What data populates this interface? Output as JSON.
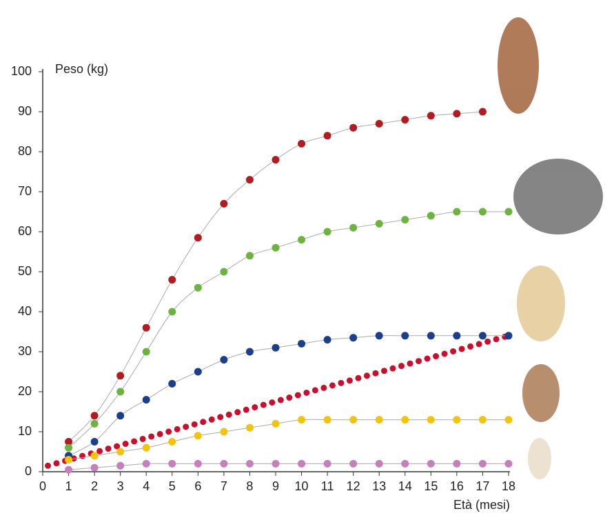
{
  "chart_data": {
    "type": "line",
    "y_label": "Peso (kg)",
    "x_label": "Età (mesi)",
    "x": [
      1,
      2,
      3,
      4,
      5,
      6,
      7,
      8,
      9,
      10,
      11,
      12,
      13,
      14,
      15,
      16,
      17,
      18
    ],
    "series": [
      {
        "color": "#b01c22",
        "values": [
          7.5,
          14,
          24,
          36,
          48,
          58.5,
          67,
          73,
          78,
          82,
          84,
          86,
          87,
          88,
          89,
          89.5,
          90,
          null
        ]
      },
      {
        "color": "#6cb33f",
        "values": [
          6,
          12,
          20,
          30,
          40,
          46,
          50,
          54,
          56,
          58,
          60,
          61,
          62,
          63,
          64,
          65,
          65,
          65
        ]
      },
      {
        "color": "#1c3f8c",
        "values": [
          4,
          7.5,
          14,
          18,
          22,
          25,
          28,
          30,
          31,
          32,
          33,
          33.5,
          34,
          34,
          34,
          34,
          34,
          34
        ]
      },
      {
        "color": "#f2c40f",
        "values": [
          3,
          4,
          5,
          6,
          7.5,
          9,
          10,
          11,
          12,
          13,
          13,
          13,
          13,
          13,
          13,
          13,
          13,
          13
        ]
      },
      {
        "color": "#c67fbd",
        "values": [
          0.5,
          1,
          1.5,
          2,
          2,
          2,
          2,
          2,
          2,
          2,
          2,
          2,
          2,
          2,
          2,
          2,
          2,
          2
        ]
      }
    ],
    "reference": {
      "color": "#c8102e",
      "x": [
        0.2,
        18
      ],
      "values": [
        1.5,
        34
      ]
    },
    "xlim": [
      0,
      18
    ],
    "xticks": [
      0,
      1,
      2,
      3,
      4,
      5,
      6,
      7,
      8,
      9,
      10,
      11,
      12,
      13,
      14,
      15,
      16,
      17,
      18
    ],
    "ylim": [
      0,
      100
    ],
    "yticks": [
      0,
      10,
      20,
      30,
      40,
      50,
      60,
      70,
      80,
      90,
      100
    ]
  }
}
